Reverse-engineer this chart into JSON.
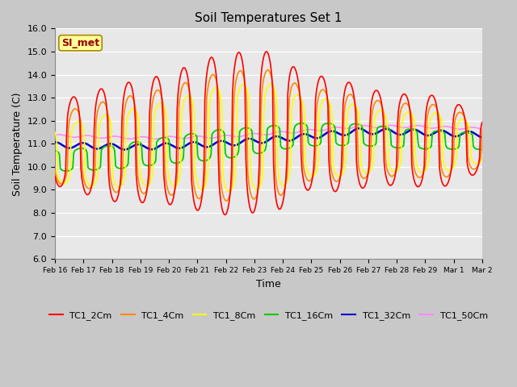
{
  "title": "Soil Temperatures Set 1",
  "xlabel": "Time",
  "ylabel": "Soil Temperature (C)",
  "ylim": [
    6.0,
    16.0
  ],
  "yticks": [
    6.0,
    7.0,
    8.0,
    9.0,
    10.0,
    11.0,
    12.0,
    13.0,
    14.0,
    15.0,
    16.0
  ],
  "fig_bg_color": "#c8c8c8",
  "plot_bg_color": "#e8e8e8",
  "annotation_text": "SI_met",
  "annotation_bg": "#ffff99",
  "annotation_border": "#aa8800",
  "series_colors": {
    "TC1_2Cm": "#ff0000",
    "TC1_4Cm": "#ff8800",
    "TC1_8Cm": "#ffff00",
    "TC1_16Cm": "#00cc00",
    "TC1_32Cm": "#0000cc",
    "TC1_50Cm": "#ff88ff"
  },
  "xtick_labels": [
    "Feb 16",
    "Feb 17",
    "Feb 18",
    "Feb 19",
    "Feb 20",
    "Feb 21",
    "Feb 22",
    "Feb 23",
    "Feb 24",
    "Feb 25",
    "Feb 26",
    "Feb 27",
    "Feb 28",
    "Feb 29",
    "Mar 1",
    "Mar 2"
  ],
  "n_points": 480,
  "days": 15.5
}
